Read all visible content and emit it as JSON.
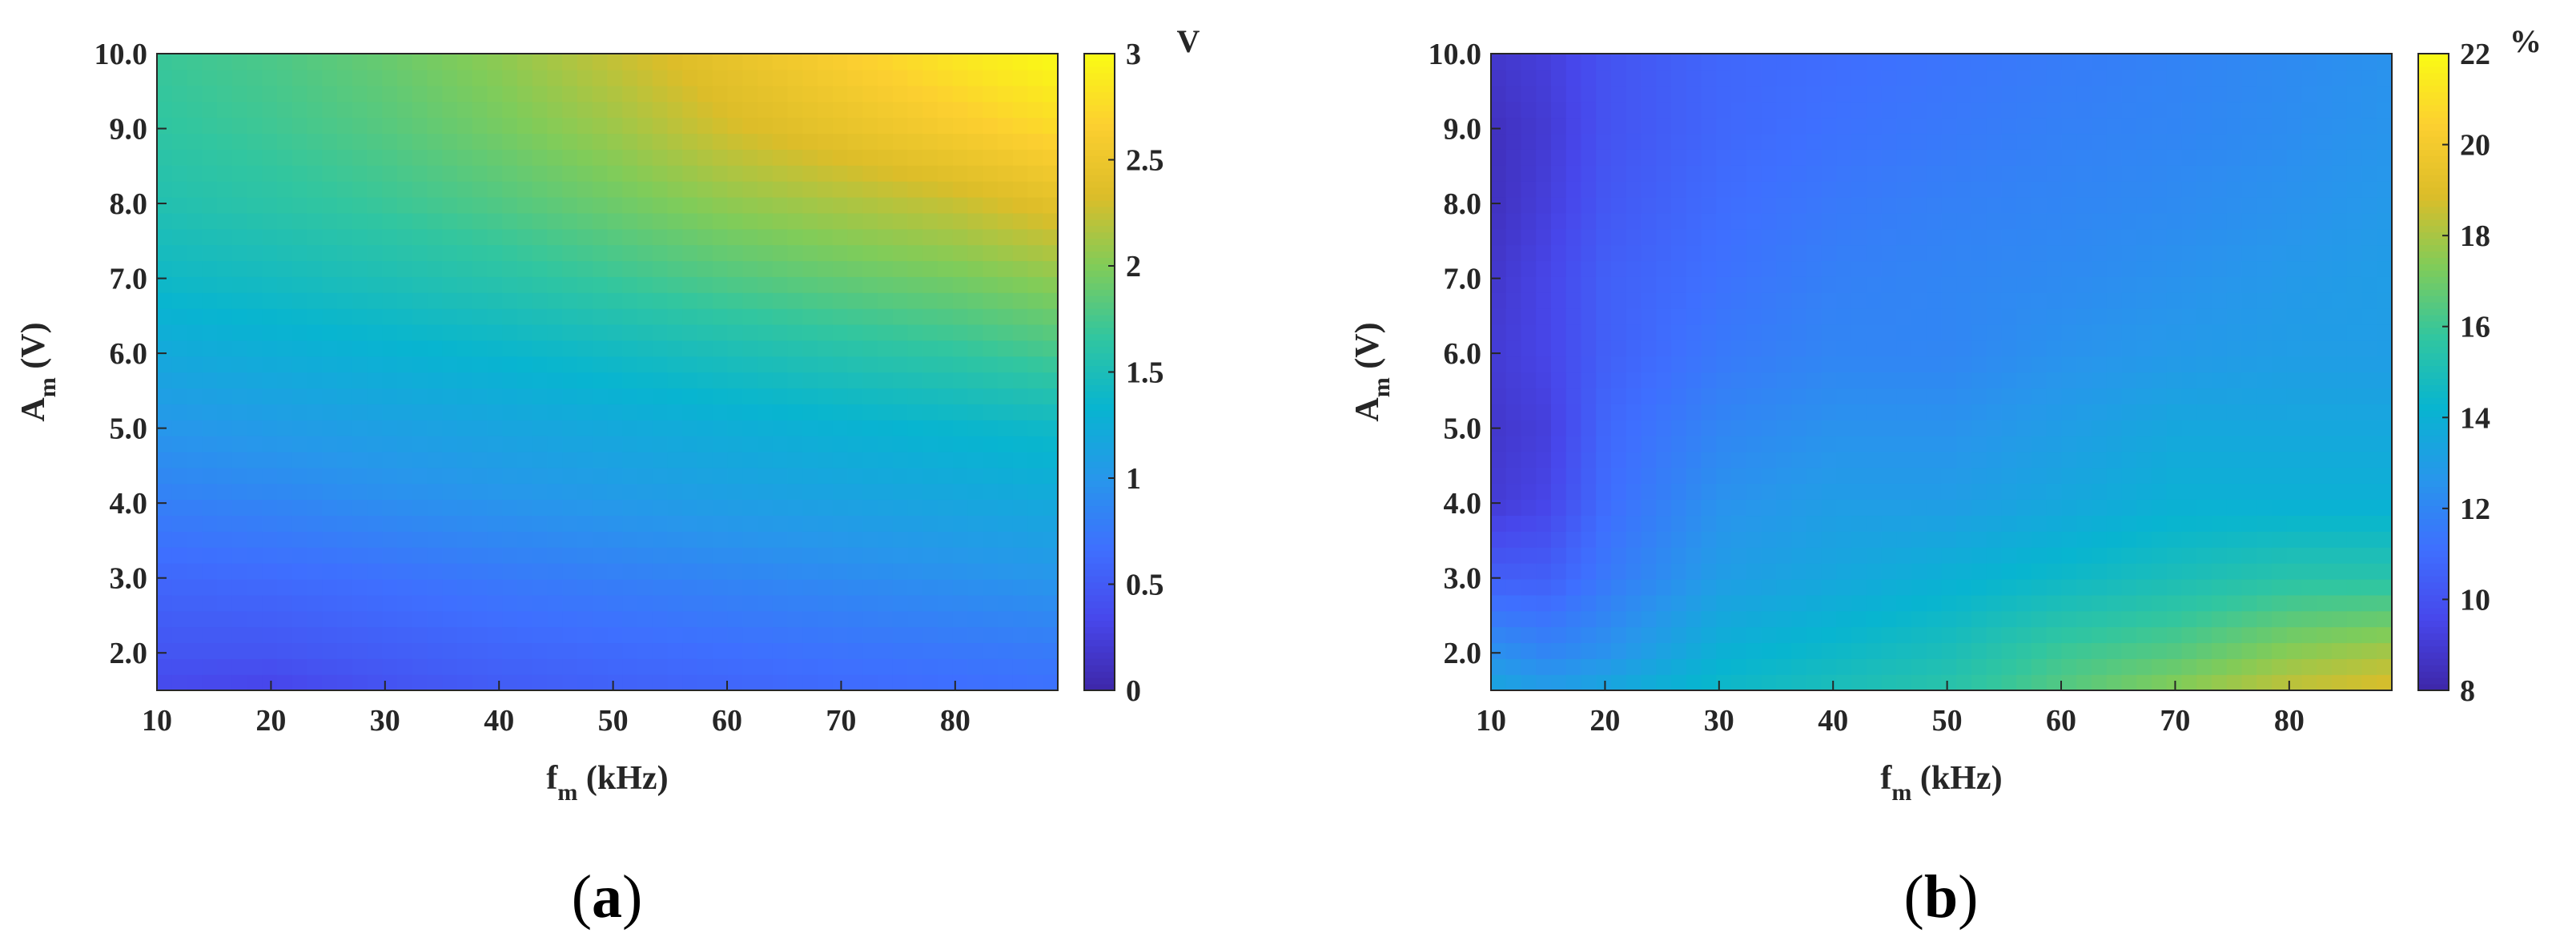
{
  "chart_data": [
    {
      "panel": "a",
      "caption": "(a)",
      "caption_letter": "a",
      "type": "heatmap",
      "xlabel": "f",
      "xlabel_sub": "m",
      "xlabel_rest": " (kHz)",
      "ylabel": "A",
      "ylabel_sub": "m",
      "ylabel_rest": " (V)",
      "xlim": [
        10,
        89
      ],
      "ylim": [
        1.5,
        10.0
      ],
      "xticks": [
        10,
        20,
        30,
        40,
        50,
        60,
        70,
        80
      ],
      "xtick_labels": [
        "10",
        "20",
        "30",
        "40",
        "50",
        "60",
        "70",
        "80"
      ],
      "yticks": [
        2,
        3,
        4,
        5,
        6,
        7,
        8,
        9,
        10
      ],
      "ytick_labels": [
        "2.0",
        "3.0",
        "4.0",
        "5.0",
        "6.0",
        "7.0",
        "8.0",
        "9.0",
        "10.0"
      ],
      "colorbar": {
        "unit": "V",
        "min": 0,
        "max": 3,
        "ticks": [
          0,
          0.5,
          1,
          1.5,
          2,
          2.5,
          3
        ],
        "tick_labels": [
          "0",
          "0.5",
          "1",
          "1.5",
          "2",
          "2.5",
          "3"
        ]
      },
      "x": [
        10,
        20,
        30,
        40,
        50,
        60,
        70,
        80,
        89
      ],
      "y": [
        1.5,
        2.0,
        3.0,
        4.0,
        5.0,
        6.0,
        7.0,
        8.0,
        9.0,
        10.0
      ],
      "z": [
        [
          0.35,
          0.3,
          0.42,
          0.5,
          0.55,
          0.58,
          0.62,
          0.65,
          0.68
        ],
        [
          0.45,
          0.45,
          0.52,
          0.58,
          0.62,
          0.66,
          0.7,
          0.73,
          0.76
        ],
        [
          0.6,
          0.63,
          0.68,
          0.75,
          0.8,
          0.85,
          0.9,
          0.95,
          1.0
        ],
        [
          0.8,
          0.85,
          0.92,
          0.98,
          1.03,
          1.08,
          1.12,
          1.16,
          1.2
        ],
        [
          1.0,
          1.05,
          1.1,
          1.15,
          1.2,
          1.25,
          1.3,
          1.35,
          1.4
        ],
        [
          1.2,
          1.25,
          1.3,
          1.35,
          1.42,
          1.5,
          1.58,
          1.65,
          1.75
        ],
        [
          1.4,
          1.45,
          1.52,
          1.6,
          1.7,
          1.8,
          1.88,
          1.95,
          2.05
        ],
        [
          1.55,
          1.62,
          1.7,
          1.8,
          1.92,
          2.05,
          2.15,
          2.25,
          2.4
        ],
        [
          1.65,
          1.72,
          1.82,
          1.95,
          2.1,
          2.3,
          2.45,
          2.6,
          2.75
        ],
        [
          1.7,
          1.78,
          1.9,
          2.05,
          2.25,
          2.45,
          2.65,
          2.85,
          3.0
        ]
      ]
    },
    {
      "panel": "b",
      "caption": "(b)",
      "caption_letter": "b",
      "type": "heatmap",
      "xlabel": "f",
      "xlabel_sub": "m",
      "xlabel_rest": " (kHz)",
      "ylabel": "A",
      "ylabel_sub": "m",
      "ylabel_rest": " (V)",
      "xlim": [
        10,
        89
      ],
      "ylim": [
        1.5,
        10.0
      ],
      "xticks": [
        10,
        20,
        30,
        40,
        50,
        60,
        70,
        80
      ],
      "xtick_labels": [
        "10",
        "20",
        "30",
        "40",
        "50",
        "60",
        "70",
        "80"
      ],
      "yticks": [
        2,
        3,
        4,
        5,
        6,
        7,
        8,
        9,
        10
      ],
      "ytick_labels": [
        "2.0",
        "3.0",
        "4.0",
        "5.0",
        "6.0",
        "7.0",
        "8.0",
        "9.0",
        "10.0"
      ],
      "colorbar": {
        "unit": "%",
        "min": 8,
        "max": 22,
        "ticks": [
          8,
          10,
          12,
          14,
          16,
          18,
          20,
          22
        ],
        "tick_labels": [
          "8",
          "10",
          "12",
          "14",
          "16",
          "18",
          "20",
          "22"
        ]
      },
      "x": [
        10,
        15,
        20,
        30,
        40,
        50,
        60,
        70,
        80,
        89
      ],
      "y": [
        1.5,
        2.0,
        3.0,
        4.0,
        5.0,
        6.0,
        7.0,
        8.0,
        9.0,
        10.0
      ],
      "z": [
        [
          13.5,
          13.0,
          13.5,
          14.5,
          15.0,
          15.5,
          16.5,
          17.5,
          18.5,
          19.0
        ],
        [
          12.5,
          12.0,
          12.5,
          14.0,
          14.5,
          15.0,
          16.0,
          16.5,
          17.5,
          18.0
        ],
        [
          10.5,
          10.5,
          11.5,
          13.0,
          13.5,
          14.0,
          14.5,
          15.0,
          15.5,
          15.5
        ],
        [
          9.0,
          9.5,
          11.0,
          12.5,
          13.0,
          13.0,
          13.5,
          14.0,
          14.0,
          14.0
        ],
        [
          8.8,
          9.2,
          10.8,
          12.0,
          12.5,
          12.5,
          13.0,
          13.5,
          13.5,
          13.5
        ],
        [
          9.0,
          9.5,
          10.5,
          11.5,
          12.0,
          12.0,
          12.5,
          12.8,
          13.0,
          13.0
        ],
        [
          8.8,
          9.5,
          10.5,
          11.2,
          11.8,
          12.0,
          12.2,
          12.5,
          12.8,
          13.0
        ],
        [
          8.5,
          9.2,
          10.2,
          11.0,
          11.5,
          11.8,
          12.0,
          12.2,
          12.5,
          12.8
        ],
        [
          8.5,
          9.0,
          10.0,
          10.8,
          11.2,
          11.5,
          11.8,
          12.0,
          12.3,
          12.6
        ],
        [
          8.8,
          9.2,
          10.0,
          10.8,
          11.0,
          11.3,
          11.6,
          11.9,
          12.2,
          12.5
        ]
      ]
    }
  ]
}
